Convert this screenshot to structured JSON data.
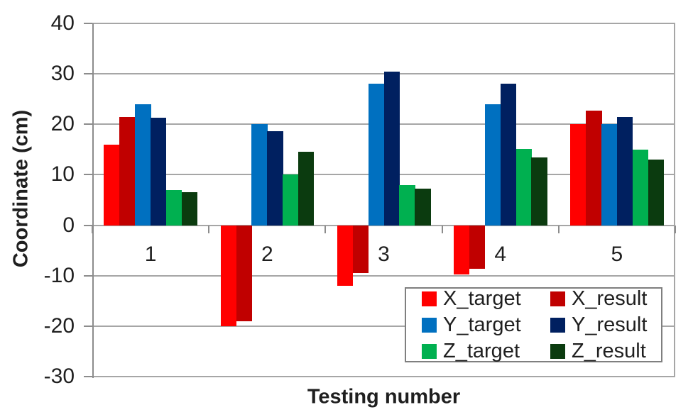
{
  "chart_data": {
    "type": "bar",
    "title": "",
    "xlabel": "Testing number",
    "ylabel": "Coordinate (cm)",
    "categories": [
      "1",
      "2",
      "3",
      "4",
      "5"
    ],
    "series": [
      {
        "name": "X_target",
        "color": "#FF0000",
        "values": [
          16.0,
          -20.0,
          -12.0,
          -9.7,
          20.0
        ]
      },
      {
        "name": "X_result",
        "color": "#C00000",
        "values": [
          21.5,
          -19.0,
          -9.5,
          -8.6,
          22.7
        ]
      },
      {
        "name": "Y_target",
        "color": "#0070C0",
        "values": [
          24.0,
          20.0,
          28.0,
          24.0,
          20.0
        ]
      },
      {
        "name": "Y_result",
        "color": "#002060",
        "values": [
          21.3,
          18.7,
          30.5,
          28.0,
          21.5
        ]
      },
      {
        "name": "Z_target",
        "color": "#00B050",
        "values": [
          7.0,
          10.0,
          8.0,
          15.1,
          15.0
        ]
      },
      {
        "name": "Z_result",
        "color": "#0B3B0F",
        "values": [
          6.5,
          14.5,
          7.2,
          13.5,
          13.0
        ]
      }
    ],
    "ylim": [
      -30,
      40
    ],
    "ytick_step": 10,
    "yticks": [
      "40",
      "30",
      "20",
      "10",
      "0",
      "-10",
      "-20",
      "-30"
    ],
    "grid": true,
    "legend_position": "inside-bottom-right"
  },
  "colors": {
    "gridline": "#A6A6A6",
    "axis_line": "#8C8C8C",
    "text": "#1F1F1F",
    "legend_border": "#7F7F7F",
    "background": "#FFFFFF"
  }
}
